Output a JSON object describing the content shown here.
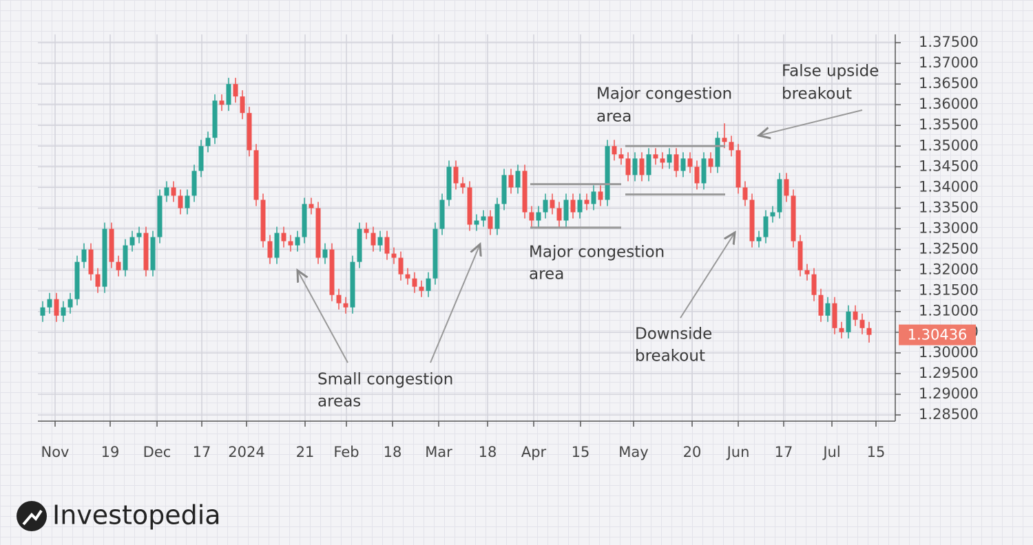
{
  "chart_data": {
    "type": "candlestick",
    "up_color": "#2aa394",
    "down_color": "#ef5350",
    "ylim": [
      1.2835,
      1.377
    ],
    "xlim": [
      -0.7,
      123.8
    ],
    "grid": true,
    "yticks": [
      {
        "value": 1.375,
        "label": "1.37500"
      },
      {
        "value": 1.37,
        "label": "1.37000"
      },
      {
        "value": 1.365,
        "label": "1.36500"
      },
      {
        "value": 1.36,
        "label": "1.36000"
      },
      {
        "value": 1.355,
        "label": "1.35500"
      },
      {
        "value": 1.35,
        "label": "1.35000"
      },
      {
        "value": 1.345,
        "label": "1.34500"
      },
      {
        "value": 1.34,
        "label": "1.34000"
      },
      {
        "value": 1.335,
        "label": "1.33500"
      },
      {
        "value": 1.33,
        "label": "1.33000"
      },
      {
        "value": 1.325,
        "label": "1.32500"
      },
      {
        "value": 1.32,
        "label": "1.32000"
      },
      {
        "value": 1.315,
        "label": "1.31500"
      },
      {
        "value": 1.31,
        "label": "1.31000"
      },
      {
        "value": 1.305,
        "label": "1.30500"
      },
      {
        "value": 1.3,
        "label": "1.30000"
      },
      {
        "value": 1.295,
        "label": "1.29500"
      },
      {
        "value": 1.29,
        "label": "1.29000"
      },
      {
        "value": 1.285,
        "label": "1.28500"
      }
    ],
    "xticks": [
      {
        "value": 1.8,
        "label": "Nov"
      },
      {
        "value": 9.8,
        "label": "19"
      },
      {
        "value": 16.6,
        "label": "Dec"
      },
      {
        "value": 23.1,
        "label": "17"
      },
      {
        "value": 29.6,
        "label": "2024"
      },
      {
        "value": 38.1,
        "label": "21"
      },
      {
        "value": 44.1,
        "label": "Feb"
      },
      {
        "value": 50.8,
        "label": "18"
      },
      {
        "value": 57.5,
        "label": "Mar"
      },
      {
        "value": 64.6,
        "label": "18"
      },
      {
        "value": 71.3,
        "label": "Apr"
      },
      {
        "value": 78.1,
        "label": "15"
      },
      {
        "value": 85.8,
        "label": "May"
      },
      {
        "value": 94.3,
        "label": "20"
      },
      {
        "value": 101,
        "label": "Jun"
      },
      {
        "value": 107.6,
        "label": "17"
      },
      {
        "value": 114.6,
        "label": "Jul"
      },
      {
        "value": 121,
        "label": "15"
      }
    ],
    "open": [
      1.309,
      1.311,
      1.313,
      1.309,
      1.311,
      1.313,
      1.322,
      1.325,
      1.319,
      1.316,
      1.33,
      1.322,
      1.32,
      1.326,
      1.328,
      1.329,
      1.32,
      1.328,
      1.338,
      1.34,
      1.338,
      1.335,
      1.338,
      1.344,
      1.35,
      1.352,
      1.361,
      1.36,
      1.365,
      1.362,
      1.358,
      1.349,
      1.337,
      1.327,
      1.323,
      1.329,
      1.327,
      1.326,
      1.328,
      1.336,
      1.335,
      1.323,
      1.325,
      1.314,
      1.312,
      1.311,
      1.322,
      1.33,
      1.329,
      1.326,
      1.328,
      1.324,
      1.323,
      1.319,
      1.318,
      1.316,
      1.315,
      1.318,
      1.33,
      1.337,
      1.345,
      1.341,
      1.34,
      1.331,
      1.332,
      1.333,
      1.33,
      1.336,
      1.343,
      1.34,
      1.344,
      1.334,
      1.332,
      1.334,
      1.337,
      1.335,
      1.332,
      1.337,
      1.334,
      1.337,
      1.336,
      1.339,
      1.337,
      1.35,
      1.348,
      1.347,
      1.343,
      1.347,
      1.343,
      1.348,
      1.347,
      1.346,
      1.348,
      1.344,
      1.347,
      1.345,
      1.341,
      1.347,
      1.345,
      1.352,
      1.351,
      1.349,
      1.34,
      1.337,
      1.327,
      1.328,
      1.333,
      1.334,
      1.342,
      1.338,
      1.327,
      1.32,
      1.319,
      1.314,
      1.309,
      1.312,
      1.306,
      1.305,
      1.31,
      1.308,
      1.306
    ],
    "high": [
      1.3125,
      1.3145,
      1.3145,
      1.3125,
      1.3145,
      1.3235,
      1.3265,
      1.3265,
      1.3205,
      1.3315,
      1.3315,
      1.3235,
      1.3275,
      1.3295,
      1.3305,
      1.3305,
      1.3295,
      1.3395,
      1.3415,
      1.3415,
      1.3395,
      1.3395,
      1.3455,
      1.3515,
      1.3535,
      1.3625,
      1.3625,
      1.3665,
      1.3665,
      1.3635,
      1.3595,
      1.3505,
      1.3385,
      1.3285,
      1.3305,
      1.3305,
      1.3285,
      1.3295,
      1.3375,
      1.3375,
      1.3365,
      1.3265,
      1.3265,
      1.3155,
      1.3135,
      1.3235,
      1.3315,
      1.3315,
      1.3305,
      1.3295,
      1.3295,
      1.3255,
      1.3245,
      1.3205,
      1.3195,
      1.3175,
      1.3195,
      1.3315,
      1.3385,
      1.3465,
      1.3465,
      1.3425,
      1.3415,
      1.3335,
      1.3345,
      1.3345,
      1.3375,
      1.3445,
      1.3445,
      1.3455,
      1.3455,
      1.3355,
      1.3355,
      1.3385,
      1.3385,
      1.3365,
      1.3385,
      1.3385,
      1.3385,
      1.3385,
      1.3405,
      1.3405,
      1.3515,
      1.3515,
      1.3495,
      1.3485,
      1.3485,
      1.3485,
      1.3495,
      1.3495,
      1.3485,
      1.3495,
      1.3495,
      1.3485,
      1.3485,
      1.3465,
      1.3485,
      1.3485,
      1.3535,
      1.3555,
      1.3525,
      1.3505,
      1.3415,
      1.3385,
      1.3295,
      1.3345,
      1.3355,
      1.3435,
      1.3435,
      1.3395,
      1.3285,
      1.3215,
      1.3205,
      1.3155,
      1.3135,
      1.3135,
      1.3075,
      1.3115,
      1.3115,
      1.3095,
      1.3075
    ],
    "low": [
      1.3075,
      1.3095,
      1.3075,
      1.3075,
      1.3095,
      1.3115,
      1.3205,
      1.3175,
      1.3145,
      1.3145,
      1.3205,
      1.3185,
      1.3185,
      1.3245,
      1.3265,
      1.3185,
      1.3185,
      1.3265,
      1.3365,
      1.3365,
      1.3335,
      1.3335,
      1.3365,
      1.3425,
      1.3485,
      1.3505,
      1.3585,
      1.3585,
      1.3605,
      1.3565,
      1.3475,
      1.3355,
      1.3255,
      1.3215,
      1.3215,
      1.3255,
      1.3245,
      1.3245,
      1.3265,
      1.3335,
      1.3215,
      1.3215,
      1.3125,
      1.3105,
      1.3095,
      1.3095,
      1.3205,
      1.3275,
      1.3245,
      1.3245,
      1.3225,
      1.3215,
      1.3175,
      1.3165,
      1.3145,
      1.3135,
      1.3135,
      1.3165,
      1.3285,
      1.3355,
      1.3395,
      1.3385,
      1.3295,
      1.3295,
      1.3305,
      1.3285,
      1.3285,
      1.3345,
      1.3385,
      1.3385,
      1.3325,
      1.3305,
      1.3305,
      1.3325,
      1.3335,
      1.3305,
      1.3305,
      1.3325,
      1.3325,
      1.3345,
      1.3345,
      1.3355,
      1.3355,
      1.3465,
      1.3455,
      1.3415,
      1.3415,
      1.3415,
      1.3415,
      1.3455,
      1.3445,
      1.3445,
      1.3425,
      1.3425,
      1.3435,
      1.3395,
      1.3395,
      1.3435,
      1.3435,
      1.3495,
      1.3475,
      1.3385,
      1.3355,
      1.3255,
      1.3255,
      1.3265,
      1.3315,
      1.3325,
      1.3365,
      1.3255,
      1.3185,
      1.3175,
      1.3125,
      1.3075,
      1.3075,
      1.3045,
      1.3035,
      1.3035,
      1.3065,
      1.3045,
      1.3025
    ],
    "close": [
      1.311,
      1.313,
      1.309,
      1.311,
      1.313,
      1.322,
      1.325,
      1.319,
      1.316,
      1.33,
      1.322,
      1.32,
      1.326,
      1.328,
      1.329,
      1.32,
      1.328,
      1.338,
      1.34,
      1.338,
      1.335,
      1.338,
      1.344,
      1.35,
      1.352,
      1.361,
      1.36,
      1.365,
      1.362,
      1.358,
      1.349,
      1.337,
      1.327,
      1.323,
      1.329,
      1.327,
      1.326,
      1.328,
      1.336,
      1.335,
      1.323,
      1.325,
      1.314,
      1.312,
      1.311,
      1.322,
      1.33,
      1.329,
      1.326,
      1.328,
      1.324,
      1.323,
      1.319,
      1.318,
      1.316,
      1.315,
      1.318,
      1.33,
      1.337,
      1.345,
      1.341,
      1.34,
      1.331,
      1.332,
      1.333,
      1.33,
      1.336,
      1.343,
      1.34,
      1.344,
      1.334,
      1.332,
      1.334,
      1.337,
      1.335,
      1.332,
      1.337,
      1.334,
      1.337,
      1.336,
      1.339,
      1.337,
      1.35,
      1.348,
      1.347,
      1.343,
      1.347,
      1.343,
      1.348,
      1.347,
      1.346,
      1.348,
      1.344,
      1.347,
      1.345,
      1.341,
      1.347,
      1.345,
      1.352,
      1.351,
      1.349,
      1.34,
      1.337,
      1.327,
      1.328,
      1.333,
      1.334,
      1.342,
      1.338,
      1.327,
      1.32,
      1.319,
      1.314,
      1.309,
      1.312,
      1.306,
      1.305,
      1.31,
      1.308,
      1.306,
      1.30436
    ],
    "last_price": 1.30436,
    "congestion_levels": [
      1.3408,
      1.3303,
      1.35,
      1.3383
    ],
    "annotations": [
      {
        "lines": [
          "Major congestion",
          "area"
        ]
      },
      {
        "lines": [
          "False upside",
          "breakout"
        ]
      },
      {
        "lines": [
          "Major congestion",
          "area"
        ]
      },
      {
        "lines": [
          "Downside",
          "breakout"
        ]
      },
      {
        "lines": [
          "Small congestion",
          "areas"
        ]
      }
    ],
    "source": "Investopedia"
  }
}
